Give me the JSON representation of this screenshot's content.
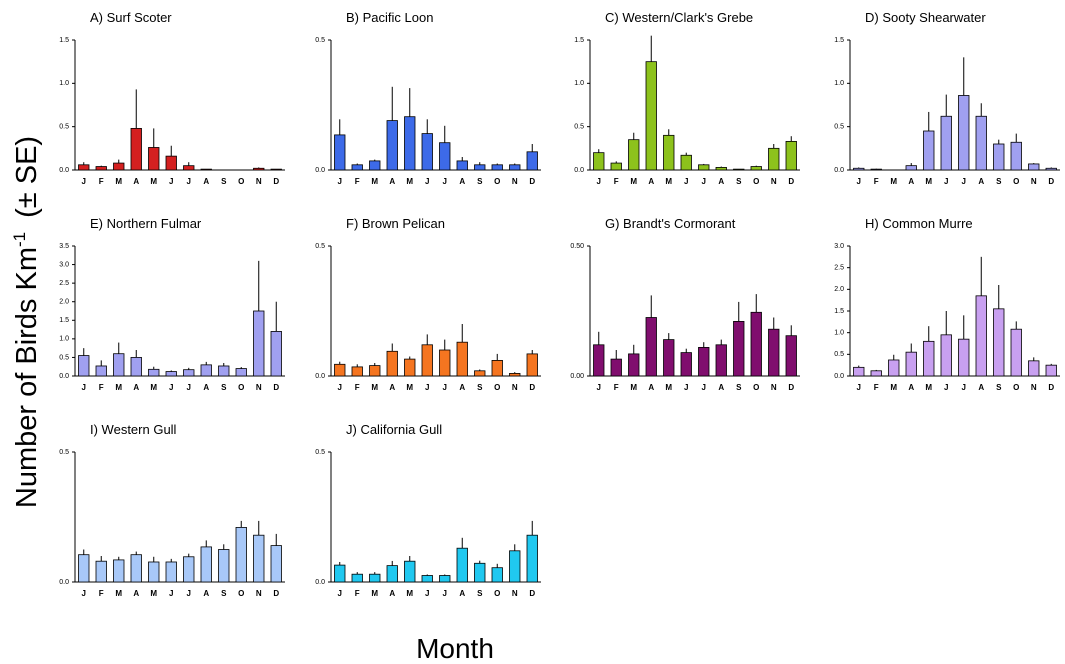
{
  "ylabel": {
    "text": "Number of Birds Km",
    "superscript": "-1",
    "suffix": "(± SE)"
  },
  "xlabel": "Month",
  "chart_data": [
    {
      "type": "bar",
      "title": "A) Surf Scoter",
      "color": "#d42020",
      "categories": [
        "J",
        "F",
        "M",
        "A",
        "M",
        "J",
        "J",
        "A",
        "S",
        "O",
        "N",
        "D"
      ],
      "values": [
        0.06,
        0.04,
        0.08,
        0.48,
        0.26,
        0.16,
        0.05,
        0.01,
        0,
        0,
        0.02,
        0.01
      ],
      "errors": [
        0.03,
        0.01,
        0.04,
        0.45,
        0.22,
        0.12,
        0.04,
        0,
        0,
        0,
        0.01,
        0
      ],
      "ylim": [
        0,
        1.5
      ],
      "yticks": [
        {
          "value": 0,
          "label": "0.0"
        },
        {
          "value": 0.5,
          "label": "0.5"
        },
        {
          "value": 1,
          "label": "1.0"
        },
        {
          "value": 1.5,
          "label": "1.5"
        }
      ]
    },
    {
      "type": "bar",
      "title": "B) Pacific Loon",
      "color": "#3d6ae8",
      "categories": [
        "J",
        "F",
        "M",
        "A",
        "M",
        "J",
        "J",
        "A",
        "S",
        "O",
        "N",
        "D"
      ],
      "values": [
        0.135,
        0.02,
        0.035,
        0.19,
        0.205,
        0.14,
        0.105,
        0.035,
        0.02,
        0.02,
        0.02,
        0.07
      ],
      "errors": [
        0.06,
        0.005,
        0.005,
        0.13,
        0.11,
        0.055,
        0.065,
        0.015,
        0.01,
        0.005,
        0.005,
        0.03
      ],
      "ylim": [
        0,
        0.5
      ],
      "yticks": [
        {
          "value": 0,
          "label": "0.0"
        },
        {
          "value": 0.5,
          "label": "0.5"
        }
      ]
    },
    {
      "type": "bar",
      "title": "C) Western/Clark's Grebe",
      "color": "#8dc21c",
      "categories": [
        "J",
        "F",
        "M",
        "A",
        "M",
        "J",
        "J",
        "A",
        "S",
        "O",
        "N",
        "D"
      ],
      "values": [
        0.2,
        0.08,
        0.35,
        1.25,
        0.4,
        0.17,
        0.06,
        0.03,
        0.01,
        0.04,
        0.25,
        0.33
      ],
      "errors": [
        0.04,
        0.02,
        0.08,
        0.3,
        0.07,
        0.03,
        0.01,
        0.01,
        0,
        0.01,
        0.05,
        0.06
      ],
      "ylim": [
        0,
        1.5
      ],
      "yticks": [
        {
          "value": 0,
          "label": "0.0"
        },
        {
          "value": 0.5,
          "label": "0.5"
        },
        {
          "value": 1,
          "label": "1.0"
        },
        {
          "value": 1.5,
          "label": "1.5"
        }
      ]
    },
    {
      "type": "bar",
      "title": "D) Sooty Shearwater",
      "color": "#a0a0f0",
      "categories": [
        "J",
        "F",
        "M",
        "A",
        "M",
        "J",
        "J",
        "A",
        "S",
        "O",
        "N",
        "D"
      ],
      "values": [
        0.02,
        0.01,
        0,
        0.05,
        0.45,
        0.62,
        0.86,
        0.62,
        0.3,
        0.32,
        0.07,
        0.02
      ],
      "errors": [
        0.01,
        0.005,
        0,
        0.03,
        0.22,
        0.25,
        0.44,
        0.15,
        0.05,
        0.1,
        0.01,
        0.01
      ],
      "ylim": [
        0,
        1.5
      ],
      "yticks": [
        {
          "value": 0,
          "label": "0.0"
        },
        {
          "value": 0.5,
          "label": "0.5"
        },
        {
          "value": 1,
          "label": "1.0"
        },
        {
          "value": 1.5,
          "label": "1.5"
        }
      ]
    },
    {
      "type": "bar",
      "title": "E) Northern Fulmar",
      "color": "#a0a0f0",
      "categories": [
        "J",
        "F",
        "M",
        "A",
        "M",
        "J",
        "J",
        "A",
        "S",
        "O",
        "N",
        "D"
      ],
      "values": [
        0.55,
        0.27,
        0.6,
        0.5,
        0.18,
        0.12,
        0.17,
        0.3,
        0.27,
        0.2,
        1.75,
        1.2
      ],
      "errors": [
        0.2,
        0.15,
        0.3,
        0.2,
        0.07,
        0.03,
        0.05,
        0.08,
        0.08,
        0.04,
        1.35,
        0.8
      ],
      "ylim": [
        0,
        3.5
      ],
      "yticks": [
        {
          "value": 0,
          "label": "0.0"
        },
        {
          "value": 0.5,
          "label": "0.5"
        },
        {
          "value": 1,
          "label": "1.0"
        },
        {
          "value": 1.5,
          "label": "1.5"
        },
        {
          "value": 2,
          "label": "2.0"
        },
        {
          "value": 2.5,
          "label": "2.5"
        },
        {
          "value": 3,
          "label": "3.0"
        },
        {
          "value": 3.5,
          "label": "3.5"
        }
      ]
    },
    {
      "type": "bar",
      "title": "F) Brown Pelican",
      "color": "#f57520",
      "categories": [
        "J",
        "F",
        "M",
        "A",
        "M",
        "J",
        "J",
        "A",
        "S",
        "O",
        "N",
        "D"
      ],
      "values": [
        0.045,
        0.035,
        0.04,
        0.095,
        0.065,
        0.12,
        0.1,
        0.13,
        0.02,
        0.06,
        0.01,
        0.085
      ],
      "errors": [
        0.01,
        0.01,
        0.01,
        0.03,
        0.01,
        0.04,
        0.04,
        0.07,
        0.005,
        0.025,
        0.005,
        0.015
      ],
      "ylim": [
        0,
        0.5
      ],
      "yticks": [
        {
          "value": 0,
          "label": "0.0"
        },
        {
          "value": 0.5,
          "label": "0.5"
        }
      ]
    },
    {
      "type": "bar",
      "title": "G) Brandt's Cormorant",
      "color": "#800e6e",
      "categories": [
        "J",
        "F",
        "M",
        "A",
        "M",
        "J",
        "J",
        "A",
        "S",
        "O",
        "N",
        "D"
      ],
      "values": [
        0.12,
        0.065,
        0.085,
        0.225,
        0.14,
        0.09,
        0.11,
        0.12,
        0.21,
        0.245,
        0.18,
        0.155
      ],
      "errors": [
        0.05,
        0.035,
        0.035,
        0.085,
        0.025,
        0.015,
        0.02,
        0.02,
        0.075,
        0.07,
        0.045,
        0.04
      ],
      "ylim": [
        0,
        0.5
      ],
      "yticks": [
        {
          "value": 0,
          "label": "0.00"
        },
        {
          "value": 0.5,
          "label": "0.50"
        }
      ]
    },
    {
      "type": "bar",
      "title": "H) Common Murre",
      "color": "#c8a0f0",
      "categories": [
        "J",
        "F",
        "M",
        "A",
        "M",
        "J",
        "J",
        "A",
        "S",
        "O",
        "N",
        "D"
      ],
      "values": [
        0.2,
        0.12,
        0.37,
        0.55,
        0.8,
        0.95,
        0.85,
        1.85,
        1.55,
        1.08,
        0.35,
        0.25
      ],
      "errors": [
        0.04,
        0.02,
        0.12,
        0.2,
        0.35,
        0.55,
        0.55,
        0.9,
        0.55,
        0.18,
        0.08,
        0.03
      ],
      "ylim": [
        0,
        3
      ],
      "yticks": [
        {
          "value": 0,
          "label": "0.0"
        },
        {
          "value": 0.5,
          "label": "0.5"
        },
        {
          "value": 1,
          "label": "1.0"
        },
        {
          "value": 1.5,
          "label": "1.5"
        },
        {
          "value": 2,
          "label": "2.0"
        },
        {
          "value": 2.5,
          "label": "2.5"
        },
        {
          "value": 3,
          "label": "3.0"
        }
      ]
    },
    {
      "type": "bar",
      "title": "I) Western Gull",
      "color": "#a8c8f8",
      "categories": [
        "J",
        "F",
        "M",
        "A",
        "M",
        "J",
        "J",
        "A",
        "S",
        "O",
        "N",
        "D"
      ],
      "values": [
        0.105,
        0.08,
        0.085,
        0.105,
        0.077,
        0.077,
        0.097,
        0.135,
        0.125,
        0.21,
        0.18,
        0.14
      ],
      "errors": [
        0.02,
        0.02,
        0.012,
        0.012,
        0.02,
        0.012,
        0.012,
        0.025,
        0.02,
        0.025,
        0.055,
        0.045
      ],
      "ylim": [
        0,
        0.5
      ],
      "yticks": [
        {
          "value": 0,
          "label": "0.0"
        },
        {
          "value": 0.5,
          "label": "0.5"
        }
      ]
    },
    {
      "type": "bar",
      "title": "J) California Gull",
      "color": "#20c8f0",
      "categories": [
        "J",
        "F",
        "M",
        "A",
        "M",
        "J",
        "J",
        "A",
        "S",
        "O",
        "N",
        "D"
      ],
      "values": [
        0.065,
        0.03,
        0.03,
        0.063,
        0.08,
        0.025,
        0.025,
        0.13,
        0.072,
        0.055,
        0.12,
        0.18
      ],
      "errors": [
        0.012,
        0.008,
        0.008,
        0.018,
        0.02,
        0.004,
        0.004,
        0.04,
        0.01,
        0.015,
        0.025,
        0.055
      ],
      "ylim": [
        0,
        0.5
      ],
      "yticks": [
        {
          "value": 0,
          "label": "0.0"
        },
        {
          "value": 0.5,
          "label": "0.5"
        }
      ]
    }
  ]
}
